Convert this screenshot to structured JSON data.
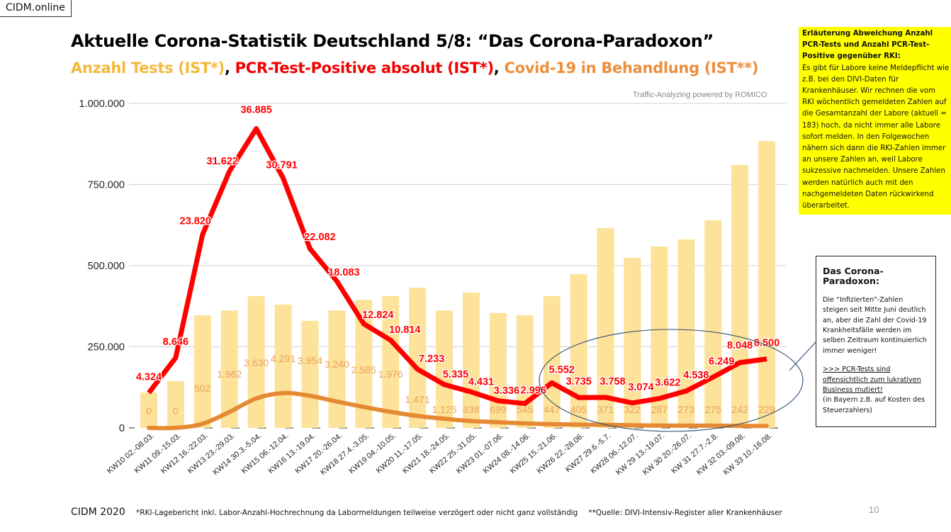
{
  "brand": "CIDM.online",
  "title": "Aktuelle Corona-Statistik Deutschland 5/8: “Das Corona-Paradoxon”",
  "subtitle": {
    "tests": "Anzahl Tests (IST*)",
    "sep1": ", ",
    "positives": "PCR-Test-Positive absolut (IST*)",
    "sep2": ", ",
    "treatment": "Covid-19 in Behandlung (IST**)"
  },
  "credit": "Traffic-Analyzing powered by ROMICO",
  "explanation_box": {
    "heading": "Erläuterung Abweichung Anzahl PCR-Tests und Anzahl PCR-Test-Positive gegenüber RKI:",
    "body": "Es gibt für Labore keine Meldepflicht wie z.B. bei den DIVI-Daten für Krankenhäuser. Wir rechnen die vom RKI wöchentlich gemeldeten Zahlen auf die Gesamtanzahl der Labore (aktuell = 183) hoch, da nicht immer alle Labore sofort melden. In den Folgewochen nähern sich dann die RKI-Zahlen immer an unsere Zahlen an, weil Labore sukzessive nachmelden. Unsere Zahlen werden natürlich auch mit den nachgemeldeten Daten rückwirkend überarbeitet."
  },
  "paradox_box": {
    "heading": "Das Corona-Paradoxon:",
    "body": "Die “Infizierten”-Zahlen steigen seit Mitte Juni deutlich an, aber die Zahl der Covid-19 Krankheitsfälle werden im selben Zeitraum kontinuierlich immer weniger!",
    "highlight": ">>> PCR-Tests sind offensichtlich zum lukrativen Business mutiert!",
    "note": "(in Bayern z.B. auf Kosten des Steuerzahlers)"
  },
  "footer": {
    "brand": "CIDM 2020",
    "note1": "*RKI-Lagebericht inkl. Labor-Anzahl-Hochrechnung da Labormeldungen teilweise verzögert oder nicht ganz vollständig",
    "note2": "**Quelle: DIVI-Intensiv-Register aller Krankenhäuser",
    "page": "10"
  },
  "colors": {
    "tests_bar": "#fde29a",
    "positives_line": "#ff0000",
    "treatment_line": "#e58a33",
    "treatment_label": "#e8a25a",
    "grid": "#d9d9d9",
    "ellipse": "#2f4e6e"
  },
  "chart_data": {
    "type": "bar",
    "title": "Aktuelle Corona-Statistik Deutschland 5/8",
    "xlabel": "",
    "ylabel": "",
    "ylim": [
      0,
      1000000
    ],
    "yticks": [
      0,
      250000,
      500000,
      750000,
      1000000
    ],
    "ytick_labels": [
      "0",
      "250.000",
      "500.000",
      "750.000",
      "1.000.000"
    ],
    "grid": true,
    "line_scale_factor": 25,
    "categories": [
      "KW10 02.-08.03.",
      "KW11 09.-15.03.",
      "KW12 16.-22.03.",
      "KW13 23.-29.03.",
      "KW14 30.3.-5.04.",
      "KW15 06.-12.04.",
      "KW16 13.-19.04.",
      "KW17 20.-26.04.",
      "KW18 27.4.-3.05.",
      "KW19 04.-10.05.",
      "KW20 11.-17.05.",
      "KW21 18.-24.05.",
      "KW22 25.-31.05.",
      "KW23 01.-07.06.",
      "KW24 08.-14.06.",
      "KW25 15.-21.06.",
      "KW26 22.-28.06.",
      "KW27 29.6.-5.7.",
      "KW28 06.-12.07.",
      "KW 29 13.-19.07.",
      "KW 30 20.-26.07.",
      "KW 31 27.7.-2.8.",
      "KW 32 03.-09.08.",
      "KW 33 10.-16.08."
    ],
    "series": [
      {
        "name": "Anzahl Tests (IST*)",
        "type": "bar",
        "values": [
          109000,
          144000,
          347000,
          362000,
          406000,
          380000,
          330000,
          362000,
          395000,
          406000,
          432000,
          362000,
          417000,
          354000,
          347000,
          406000,
          474000,
          616000,
          524000,
          559000,
          581000,
          640000,
          810000,
          884000
        ]
      },
      {
        "name": "PCR-Test-Positive absolut (IST*)",
        "type": "line",
        "values": [
          4324,
          8646,
          23820,
          31622,
          36885,
          30791,
          22082,
          18083,
          12824,
          10814,
          7233,
          5335,
          4431,
          3336,
          2996,
          5552,
          3735,
          3758,
          3074,
          3622,
          4538,
          6249,
          8048,
          8500
        ],
        "labels": [
          "4.324",
          "8.646",
          "23.820",
          "31.622",
          "36.885",
          "30.791",
          "22.082",
          "18.083",
          "12.824",
          "10.814",
          "7.233",
          "5.335",
          "4.431",
          "3.336",
          "2.996",
          "5.552",
          "3.735",
          "3.758",
          "3.074",
          "3.622",
          "4.538",
          "6.249",
          "8.048",
          "8.500"
        ]
      },
      {
        "name": "Covid-19 in Behandlung (IST**)",
        "type": "line",
        "values": [
          0,
          0,
          502,
          1962,
          3630,
          4291,
          3954,
          3240,
          2585,
          1976,
          1471,
          1125,
          838,
          699,
          545,
          447,
          405,
          371,
          322,
          287,
          273,
          275,
          242,
          229
        ],
        "labels": [
          "0",
          "0",
          "502",
          "1.962",
          "3.630",
          "4.291",
          "3.954",
          "3.240",
          "2.585",
          "1.976",
          "1.471",
          "1.125",
          "838",
          "699",
          "545",
          "447",
          "405",
          "371",
          "322",
          "287",
          "273",
          "275",
          "242",
          "229"
        ]
      }
    ],
    "annotations": [
      "Ellipse highlighting KW25 to KW33 with connector to 'Das Corona-Paradoxon' box"
    ]
  }
}
